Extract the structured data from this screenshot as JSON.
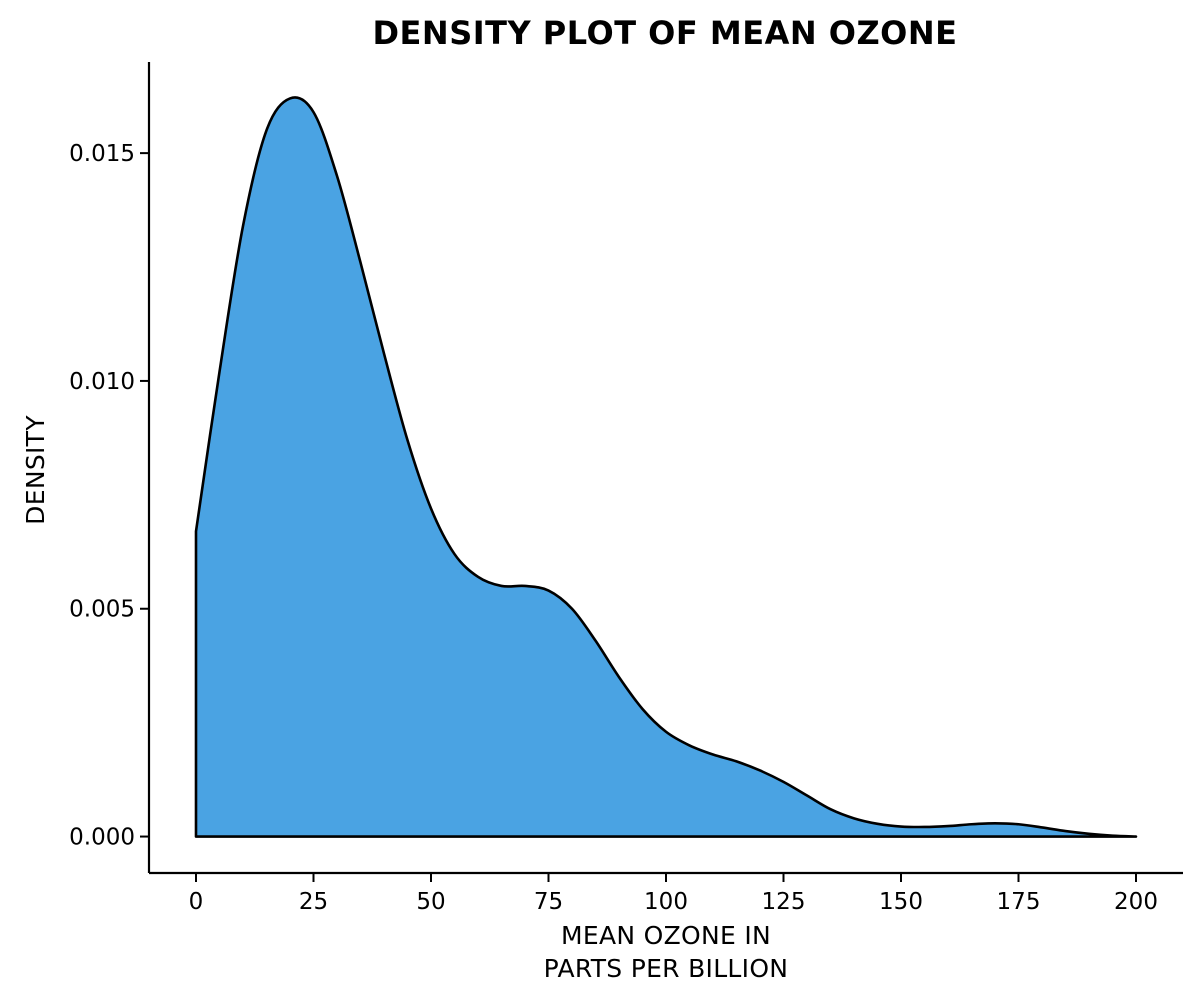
{
  "chart_data": {
    "type": "area",
    "title": "DENSITY PLOT OF MEAN OZONE",
    "xlabel": [
      "MEAN OZONE IN",
      "PARTS PER BILLION"
    ],
    "ylabel": "DENSITY",
    "xlim": [
      -10,
      210
    ],
    "ylim": [
      -0.0008,
      0.017
    ],
    "x_ticks": [
      0,
      25,
      50,
      75,
      100,
      125,
      150,
      175,
      200
    ],
    "x_tick_labels": [
      "0",
      "25",
      "50",
      "75",
      "100",
      "125",
      "150",
      "175",
      "200"
    ],
    "y_ticks": [
      0.0,
      0.005,
      0.01,
      0.015
    ],
    "y_tick_labels": [
      "0.000",
      "0.005",
      "0.010",
      "0.015"
    ],
    "grid": false,
    "legend": "none",
    "fill_color": "#4aa3e3",
    "line_color": "#000000",
    "series": [
      {
        "x": [
          0,
          5,
          10,
          15,
          20,
          25,
          30,
          35,
          40,
          45,
          50,
          55,
          60,
          65,
          70,
          75,
          80,
          85,
          90,
          95,
          100,
          105,
          110,
          115,
          120,
          125,
          130,
          135,
          140,
          145,
          150,
          155,
          160,
          165,
          170,
          175,
          180,
          185,
          190,
          195,
          200
        ],
        "y": [
          0.0067,
          0.0102,
          0.0134,
          0.0155,
          0.0162,
          0.0159,
          0.0145,
          0.0126,
          0.0106,
          0.0087,
          0.0072,
          0.0062,
          0.0057,
          0.0055,
          0.0055,
          0.0054,
          0.005,
          0.0043,
          0.0035,
          0.0028,
          0.0023,
          0.002,
          0.0018,
          0.00165,
          0.00145,
          0.0012,
          0.0009,
          0.0006,
          0.0004,
          0.00028,
          0.00022,
          0.00021,
          0.00023,
          0.00027,
          0.00029,
          0.00027,
          0.0002,
          0.00012,
          6e-05,
          2e-05,
          0.0
        ]
      }
    ]
  }
}
